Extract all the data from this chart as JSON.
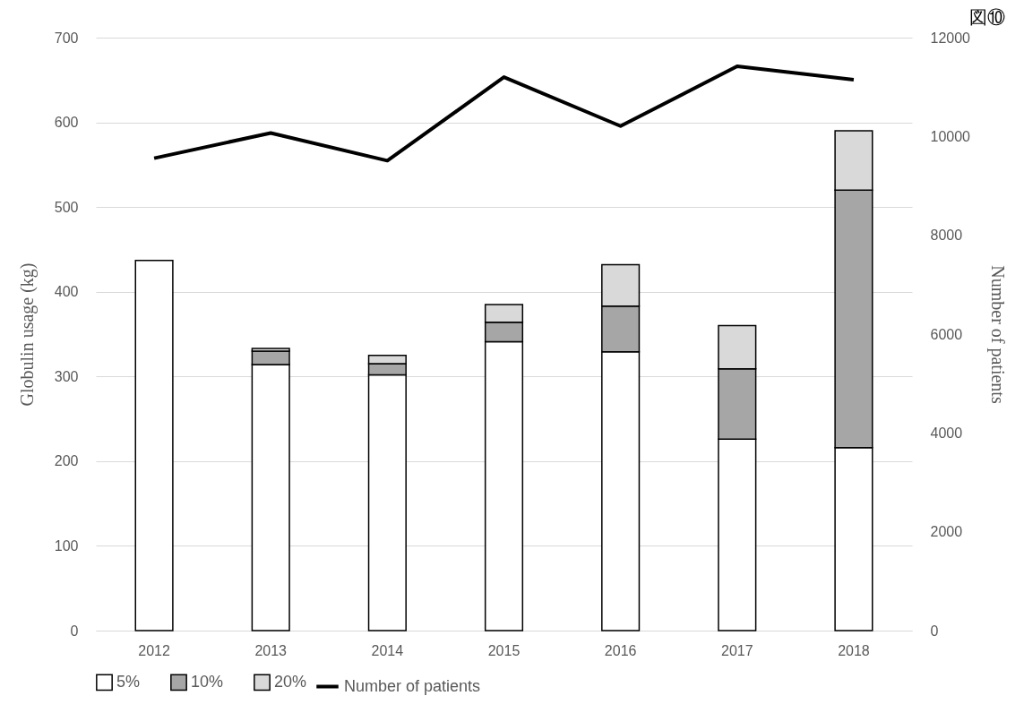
{
  "chart_data": {
    "type": "bar",
    "stacked": true,
    "categories": [
      "2012",
      "2013",
      "2014",
      "2015",
      "2016",
      "2017",
      "2018"
    ],
    "series": [
      {
        "name": "5%",
        "color": "#ffffff",
        "values": [
          437,
          314,
          302,
          341,
          329,
          226,
          216
        ]
      },
      {
        "name": "10%",
        "color": "#a6a6a6",
        "values": [
          null,
          16,
          13,
          23,
          54,
          83,
          304
        ]
      },
      {
        "name": "20%",
        "color": "#d9d9d9",
        "values": [
          null,
          3,
          10,
          21,
          49,
          51,
          70
        ]
      },
      {
        "name": "Number of patients",
        "type": "line",
        "axis": "y2",
        "color": "#000000",
        "values": [
          9560,
          10070,
          9510,
          11200,
          10210,
          11420,
          11150
        ]
      }
    ],
    "ylabel": "Globulin usage (kg)",
    "y2label": "Number of patients",
    "ylim": [
      0,
      700
    ],
    "yticks": [
      0,
      100,
      200,
      300,
      400,
      500,
      600,
      700
    ],
    "y2lim": [
      0,
      12000
    ],
    "y2ticks": [
      0,
      2000,
      4000,
      6000,
      8000,
      10000,
      12000
    ],
    "grid": "y",
    "legend": "bottom",
    "marker": "none",
    "line_style": "solid",
    "annotations": [
      "図⑩"
    ]
  }
}
